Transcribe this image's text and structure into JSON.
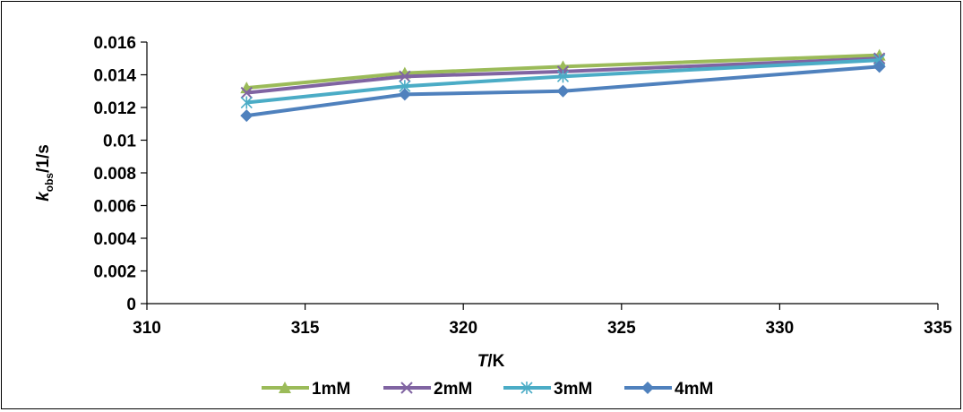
{
  "chart_data": {
    "type": "line",
    "xlabel": {
      "italic": "T",
      "rest": "/K"
    },
    "ylabel": {
      "italic": "k",
      "subscript": "obs",
      "rest": "/1/s"
    },
    "xlim": [
      310,
      335
    ],
    "ylim": [
      0,
      0.016
    ],
    "x_ticks": [
      310,
      315,
      320,
      325,
      330,
      335
    ],
    "y_ticks": [
      0,
      0.002,
      0.004,
      0.006,
      0.008,
      0.01,
      0.012,
      0.014,
      0.016
    ],
    "x_tick_labels": [
      "310",
      "315",
      "320",
      "325",
      "330",
      "335"
    ],
    "y_tick_labels": [
      "0",
      "0.002",
      "0.004",
      "0.006",
      "0.008",
      "0.01",
      "0.012",
      "0.014",
      "0.016"
    ],
    "grid": false,
    "legend_position": "bottom",
    "series": [
      {
        "name": "1mM",
        "color": "#9BBB59",
        "marker": "triangle",
        "x": [
          313.15,
          318.15,
          323.15,
          333.15
        ],
        "y": [
          0.0132,
          0.0141,
          0.0145,
          0.0152
        ]
      },
      {
        "name": "2mM",
        "color": "#8064A2",
        "marker": "x",
        "x": [
          313.15,
          318.15,
          323.15,
          333.15
        ],
        "y": [
          0.0129,
          0.0139,
          0.0142,
          0.015
        ]
      },
      {
        "name": "3mM",
        "color": "#4BACC6",
        "marker": "star",
        "x": [
          313.15,
          318.15,
          323.15,
          333.15
        ],
        "y": [
          0.0123,
          0.0133,
          0.0139,
          0.0149
        ]
      },
      {
        "name": "4mM",
        "color": "#4F81BD",
        "marker": "diamond",
        "x": [
          313.15,
          318.15,
          323.15,
          333.15
        ],
        "y": [
          0.0115,
          0.0128,
          0.013,
          0.0145
        ]
      }
    ]
  }
}
